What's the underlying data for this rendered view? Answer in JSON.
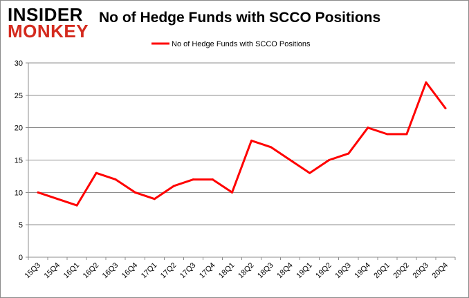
{
  "brand": {
    "logo_line1": "INSIDER",
    "logo_line2": "MONKEY"
  },
  "chart_data": {
    "type": "line",
    "title": "No of Hedge Funds with SCCO Positions",
    "categories": [
      "15Q3",
      "15Q4",
      "16Q1",
      "16Q2",
      "16Q3",
      "16Q4",
      "17Q1",
      "17Q2",
      "17Q3",
      "17Q4",
      "18Q1",
      "18Q2",
      "18Q3",
      "18Q4",
      "19Q1",
      "19Q2",
      "19Q3",
      "19Q4",
      "20Q1",
      "20Q2",
      "20Q3",
      "20Q4"
    ],
    "series": [
      {
        "name": "No of Hedge Funds with SCCO Positions",
        "color": "#ff0000",
        "values": [
          10,
          9,
          8,
          13,
          12,
          10,
          9,
          11,
          12,
          12,
          10,
          18,
          17,
          15,
          13,
          15,
          16,
          20,
          19,
          19,
          27,
          23
        ]
      }
    ],
    "ylim": [
      0,
      30
    ],
    "yticks": [
      0,
      5,
      10,
      15,
      20,
      25,
      30
    ],
    "xlabel": "",
    "ylabel": "",
    "grid": true,
    "legend_position": "top-center"
  }
}
